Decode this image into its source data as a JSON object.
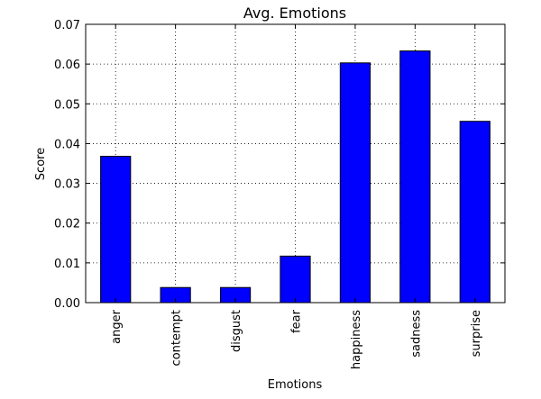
{
  "chart_data": {
    "type": "bar",
    "title": "Avg. Emotions",
    "xlabel": "Emotions",
    "ylabel": "Score",
    "categories": [
      "anger",
      "contempt",
      "disgust",
      "fear",
      "happiness",
      "sadness",
      "surprise"
    ],
    "values": [
      0.0368,
      0.0038,
      0.0038,
      0.0117,
      0.0603,
      0.0633,
      0.0456
    ],
    "ylim": [
      0,
      0.07
    ],
    "yticks": [
      "0.00",
      "0.01",
      "0.02",
      "0.03",
      "0.04",
      "0.05",
      "0.06",
      "0.07"
    ],
    "grid": true,
    "bar_color": "#0000ff",
    "edge_color": "#000000"
  }
}
